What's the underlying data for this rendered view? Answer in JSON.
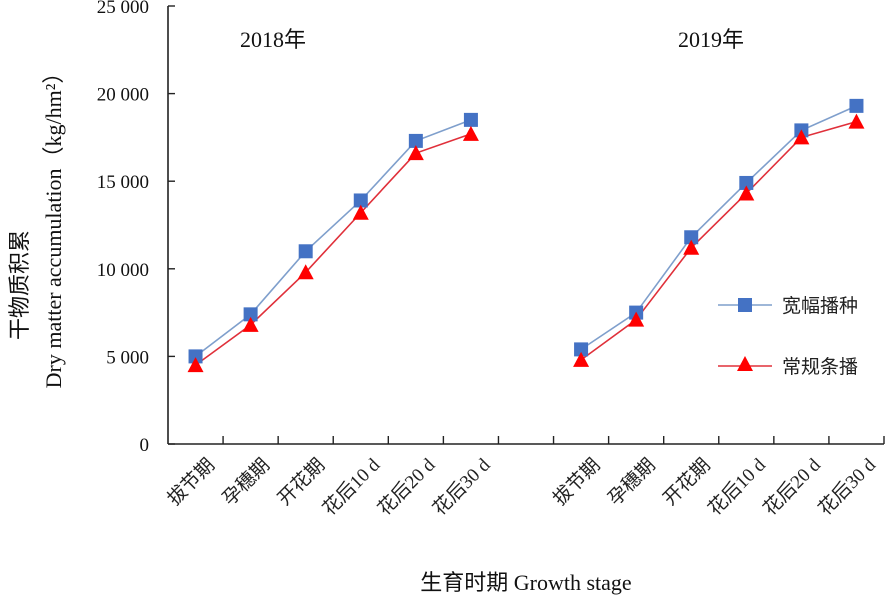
{
  "chart_data": {
    "type": "line",
    "title": "",
    "panel_titles": [
      "2018年",
      "2019年"
    ],
    "xlabel": "生育时期 Growth stage",
    "ylabel_cn": "干物质积累",
    "ylabel_en": "Dry matter accumulation（kg/hm²）",
    "ylim": [
      0,
      25000
    ],
    "yticks": [
      0,
      5000,
      10000,
      15000,
      20000,
      25000
    ],
    "ytick_labels": [
      "0",
      "5 000",
      "10 000",
      "15 000",
      "20 000",
      "25 000"
    ],
    "categories": [
      "拔节期",
      "孕穗期",
      "开花期",
      "花后10 d",
      "花后20 d",
      "花后30 d"
    ],
    "groups": [
      {
        "year": "2018年",
        "series": [
          {
            "name": "宽幅播种",
            "values": [
              5000,
              7400,
              11000,
              13900,
              17300,
              18500
            ]
          },
          {
            "name": "常规条播",
            "values": [
              4500,
              6800,
              9800,
              13200,
              16600,
              17700
            ]
          }
        ]
      },
      {
        "year": "2019年",
        "series": [
          {
            "name": "宽幅播种",
            "values": [
              5400,
              7500,
              11800,
              14900,
              17900,
              19300
            ]
          },
          {
            "name": "常规条播",
            "values": [
              4800,
              7100,
              11200,
              14300,
              17500,
              18400
            ]
          }
        ]
      }
    ],
    "legend": {
      "position": "right",
      "entries": [
        {
          "name": "宽幅播种",
          "marker": "square",
          "color": "#4472C4",
          "line_color": "#7F9FCC"
        },
        {
          "name": "常规条播",
          "marker": "triangle",
          "color": "#FF0000",
          "line_color": "#E0303A"
        }
      ]
    },
    "grid": false
  }
}
